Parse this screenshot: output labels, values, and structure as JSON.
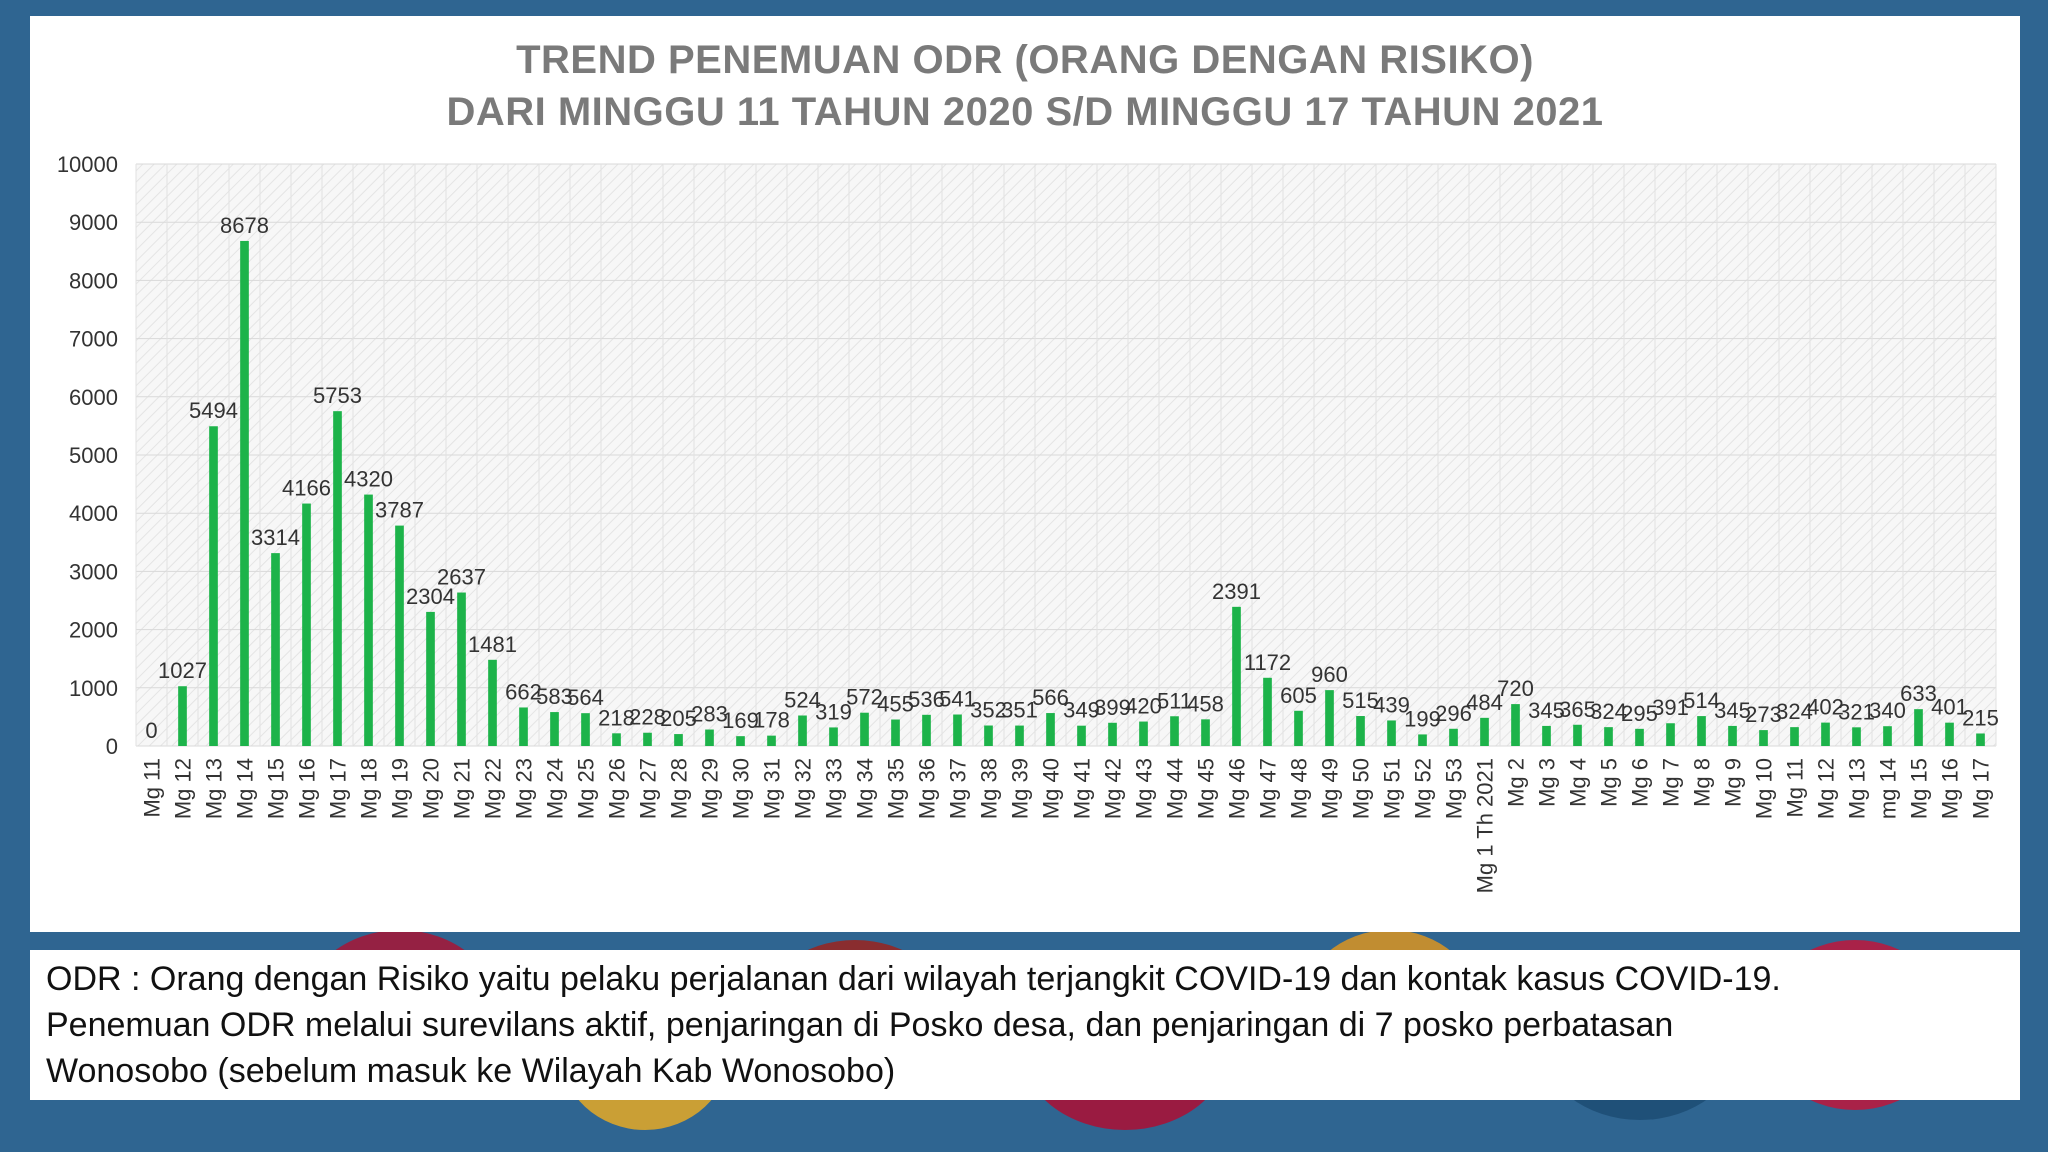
{
  "chart_data": {
    "type": "bar",
    "title": "TREND PENEMUAN ODR (ORANG DENGAN RISIKO)",
    "subtitle": "DARI MINGGU 11 TAHUN 2020 S/D MINGGU 17 TAHUN 2021",
    "xlabel": "",
    "ylabel": "",
    "ylim": [
      0,
      10000
    ],
    "yticks": [
      0,
      1000,
      2000,
      3000,
      4000,
      5000,
      6000,
      7000,
      8000,
      9000,
      10000
    ],
    "grid": true,
    "bar_color": "#1db34a",
    "categories": [
      "Mg 11",
      "Mg 12",
      "Mg 13",
      "Mg 14",
      "Mg 15",
      "Mg 16",
      "Mg 17",
      "Mg 18",
      "Mg 19",
      "Mg 20",
      "Mg 21",
      "Mg 22",
      "Mg 23",
      "Mg 24",
      "Mg 25",
      "Mg 26",
      "Mg 27",
      "Mg 28",
      "Mg 29",
      "Mg 30",
      "Mg 31",
      "Mg 32",
      "Mg 33",
      "Mg 34",
      "Mg 35",
      "Mg 36",
      "Mg 37",
      "Mg 38",
      "Mg 39",
      "Mg 40",
      "Mg 41",
      "Mg 42",
      "Mg 43",
      "Mg 44",
      "Mg 45",
      "Mg 46",
      "Mg 47",
      "Mg 48",
      "Mg 49",
      "Mg 50",
      "Mg 51",
      "Mg 52",
      "Mg 53",
      "Mg 1 Th 2021",
      "Mg 2",
      "Mg 3",
      "Mg 4",
      "Mg 5",
      "Mg 6",
      "Mg 7",
      "Mg 8",
      "Mg 9",
      "Mg 10",
      "Mg 11",
      "Mg 12",
      "Mg 13",
      "mg 14",
      "Mg 15",
      "Mg 16",
      "Mg 17"
    ],
    "values": [
      0,
      1027,
      5494,
      8678,
      3314,
      4166,
      5753,
      4320,
      3787,
      2304,
      2637,
      1481,
      662,
      583,
      564,
      218,
      228,
      205,
      283,
      169,
      178,
      524,
      319,
      572,
      455,
      536,
      541,
      352,
      351,
      566,
      349,
      399,
      420,
      511,
      458,
      2391,
      1172,
      605,
      960,
      515,
      439,
      199,
      296,
      484,
      720,
      345,
      365,
      324,
      295,
      391,
      514,
      345,
      273,
      324,
      402,
      321,
      340,
      633,
      401,
      215
    ]
  },
  "caption": {
    "line1": "ODR : Orang dengan Risiko yaitu pelaku perjalanan dari wilayah terjangkit COVID-19 dan kontak kasus COVID-19.",
    "line2": "Penemuan ODR melalui surevilans aktif, penjaringan di Posko desa, dan penjaringan di 7 posko perbatasan",
    "line3": "Wonosobo (sebelum masuk ke Wilayah Kab Wonosobo)"
  },
  "colors": {
    "background": "#2f6591",
    "bar": "#1db34a",
    "title": "#7a7a7a"
  }
}
